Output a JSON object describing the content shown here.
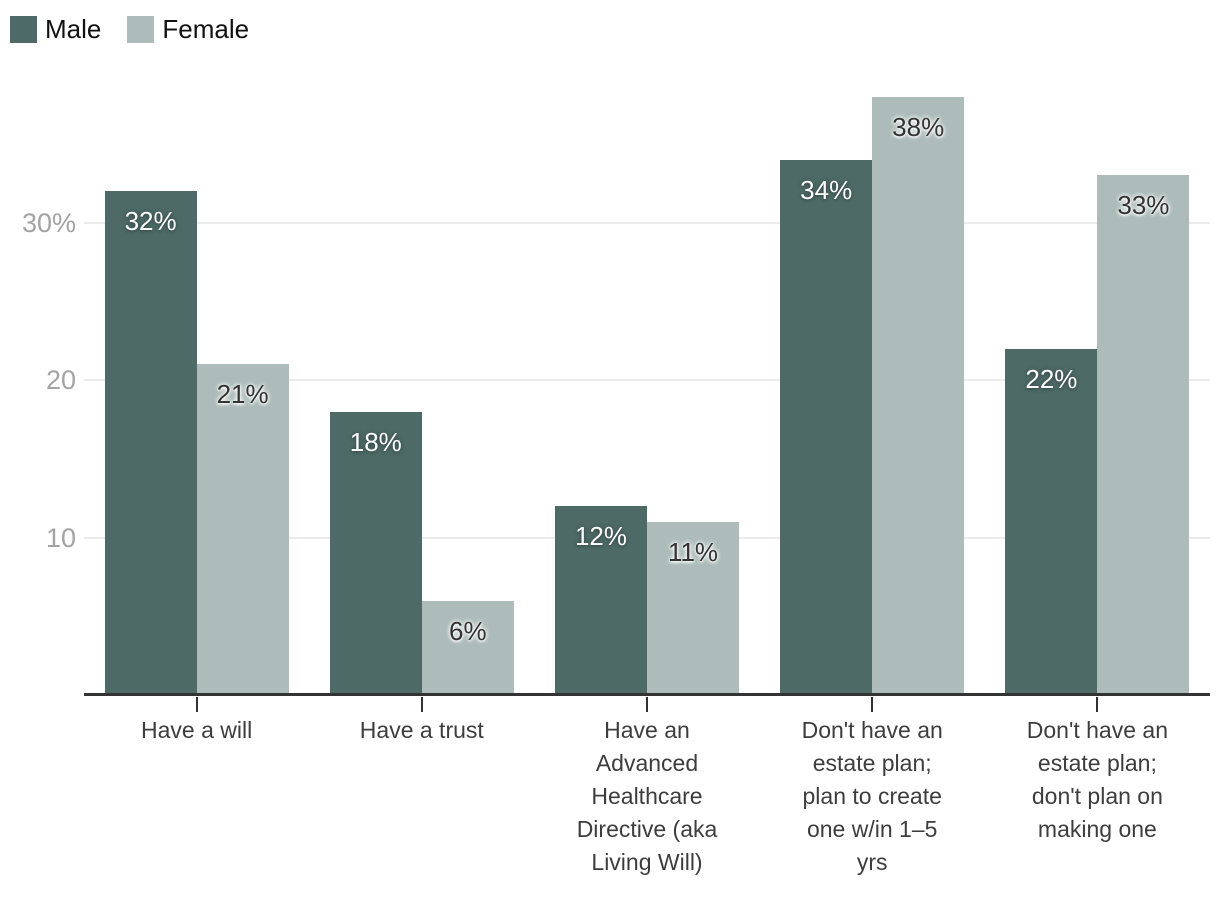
{
  "legend": {
    "items": [
      {
        "label": "Male",
        "color": "#4d6a66"
      },
      {
        "label": "Female",
        "color": "#adbcba"
      }
    ]
  },
  "chart_data": {
    "type": "bar",
    "title": "",
    "categories": [
      "Have a will",
      "Have a trust",
      "Have an Advanced Healthcare Directive (aka Living Will)",
      "Don't have an estate plan; plan to create one w/in 1–5 yrs",
      "Don't have an estate plan; don't plan on making one"
    ],
    "category_lines": [
      [
        "Have a will"
      ],
      [
        "Have a trust"
      ],
      [
        "Have an",
        "Advanced",
        "Healthcare",
        "Directive (aka",
        "Living Will)"
      ],
      [
        "Don't have an",
        "estate plan;",
        "plan to create",
        "one w/in 1–5",
        "yrs"
      ],
      [
        "Don't have an",
        "estate plan;",
        "don't plan on",
        "making one"
      ]
    ],
    "series": [
      {
        "name": "Male",
        "color": "#4d6a66",
        "value_text_style": "light",
        "values": [
          32,
          18,
          12,
          34,
          22
        ]
      },
      {
        "name": "Female",
        "color": "#adbcba",
        "value_text_style": "dark",
        "values": [
          21,
          6,
          11,
          38,
          33
        ]
      }
    ],
    "value_suffix": "%",
    "yticks": [
      {
        "value": 10,
        "label": "10"
      },
      {
        "value": 20,
        "label": "20"
      },
      {
        "value": 30,
        "label": "30%"
      }
    ],
    "ylim": [
      0,
      40
    ],
    "grid": true,
    "legend_position": "top-left",
    "colors": {
      "gridline": "#ebebeb",
      "axis": "#333333",
      "y_tick_text": "#a3a3a3",
      "x_label_text": "#3d3d3d"
    }
  }
}
